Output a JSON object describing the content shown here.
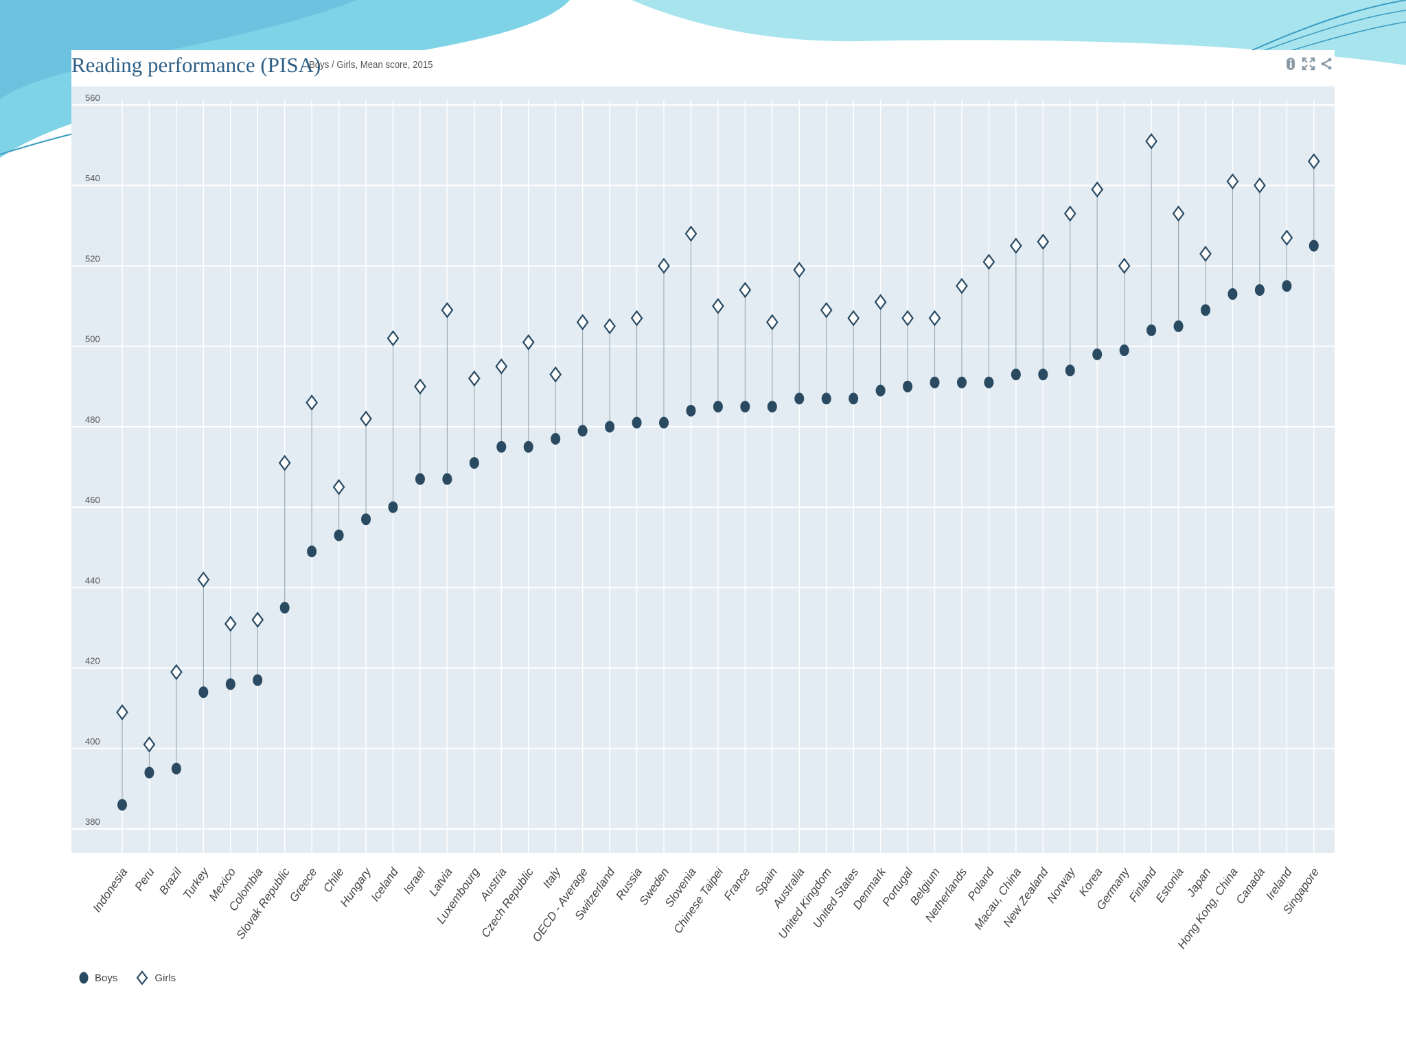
{
  "colors": {
    "boys": "#2a4a62",
    "girls_stroke": "#2a4a62",
    "plot_bg": "#e3ecf2",
    "grid": "#ffffff",
    "title": "#2e5f86",
    "decor_cyan": "#7fd3e6",
    "decor_blue": "#4aa9c9"
  },
  "icons": [
    "info-icon",
    "expand-icon",
    "share-icon"
  ],
  "chart_data": {
    "type": "dot-range",
    "title": "Reading performance (PISA)",
    "subtitle": "Boys / Girls, Mean score, 2015",
    "xlabel": "",
    "ylabel": "",
    "ylim": [
      380,
      560
    ],
    "yticks": [
      380,
      400,
      420,
      440,
      460,
      480,
      500,
      520,
      540,
      560
    ],
    "grid": true,
    "legend_position": "bottom-left",
    "categories": [
      "Indonesia",
      "Peru",
      "Brazil",
      "Turkey",
      "Mexico",
      "Colombia",
      "Slovak Republic",
      "Greece",
      "Chile",
      "Hungary",
      "Iceland",
      "Israel",
      "Latvia",
      "Luxembourg",
      "Austria",
      "Czech Republic",
      "Italy",
      "OECD - Average",
      "Switzerland",
      "Russia",
      "Sweden",
      "Slovenia",
      "Chinese Taipei",
      "France",
      "Spain",
      "Australia",
      "United Kingdom",
      "United States",
      "Denmark",
      "Portugal",
      "Belgium",
      "Netherlands",
      "Poland",
      "Macau, China",
      "New Zealand",
      "Norway",
      "Korea",
      "Germany",
      "Finland",
      "Estonia",
      "Japan",
      "Hong Kong, China",
      "Canada",
      "Ireland",
      "Singapore"
    ],
    "series": [
      {
        "name": "Boys",
        "marker": "circle",
        "values": [
          386,
          394,
          395,
          414,
          416,
          417,
          435,
          449,
          453,
          457,
          460,
          467,
          467,
          471,
          475,
          475,
          477,
          479,
          480,
          481,
          481,
          484,
          485,
          485,
          485,
          487,
          487,
          487,
          489,
          490,
          491,
          491,
          491,
          493,
          493,
          494,
          498,
          499,
          504,
          505,
          509,
          513,
          514,
          515,
          525
        ]
      },
      {
        "name": "Girls",
        "marker": "diamond",
        "values": [
          409,
          401,
          419,
          442,
          431,
          432,
          471,
          486,
          465,
          482,
          502,
          490,
          509,
          492,
          495,
          501,
          493,
          506,
          505,
          507,
          520,
          528,
          510,
          514,
          506,
          519,
          509,
          507,
          511,
          507,
          507,
          515,
          521,
          525,
          526,
          533,
          539,
          520,
          551,
          533,
          523,
          541,
          540,
          527,
          546
        ]
      }
    ]
  }
}
